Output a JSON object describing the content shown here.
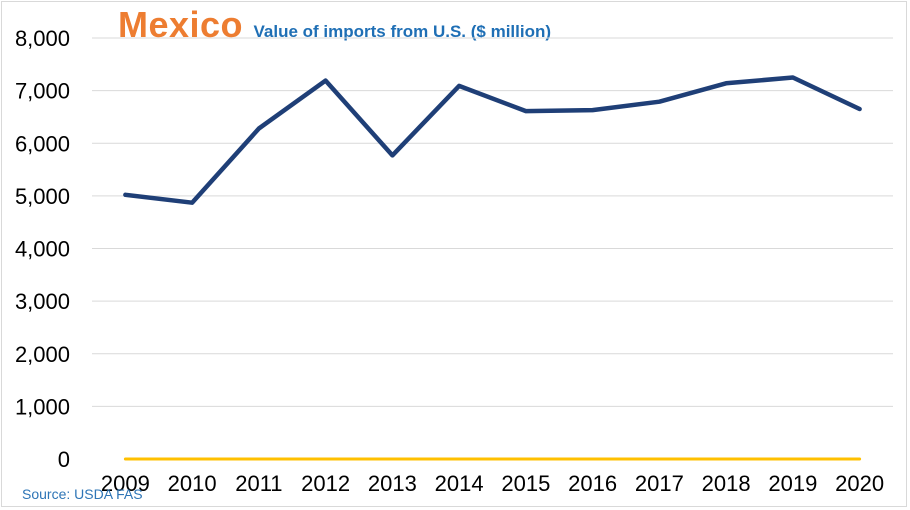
{
  "chart_data": {
    "type": "line",
    "title": "Mexico",
    "subtitle": "Value of imports from U.S. ($ million)",
    "source": "Source: USDA FAS",
    "xlabel": "",
    "ylabel": "",
    "categories": [
      "2009",
      "2010",
      "2011",
      "2012",
      "2013",
      "2014",
      "2015",
      "2016",
      "2017",
      "2018",
      "2019",
      "2020"
    ],
    "series": [
      {
        "values": [
          5020,
          4870,
          6280,
          7190,
          5770,
          7090,
          6610,
          6630,
          6790,
          7140,
          7250,
          6650
        ],
        "color": "#1f3f77"
      },
      {
        "values": [
          0,
          0,
          0,
          0,
          0,
          0,
          0,
          0,
          0,
          0,
          0,
          0
        ],
        "color": "#ffc000"
      }
    ],
    "ylim": [
      0,
      8000
    ],
    "yticks": [
      0,
      1000,
      2000,
      3000,
      4000,
      5000,
      6000,
      7000,
      8000
    ],
    "ytick_labels": [
      "0",
      "1,000",
      "2,000",
      "3,000",
      "4,000",
      "5,000",
      "6,000",
      "7,000",
      "8,000"
    ],
    "grid": true,
    "colors": {
      "title": "#ed7d31",
      "subtitle": "#1f6fb5",
      "grid": "#d9d9d9",
      "source": "#2e75b6"
    }
  }
}
